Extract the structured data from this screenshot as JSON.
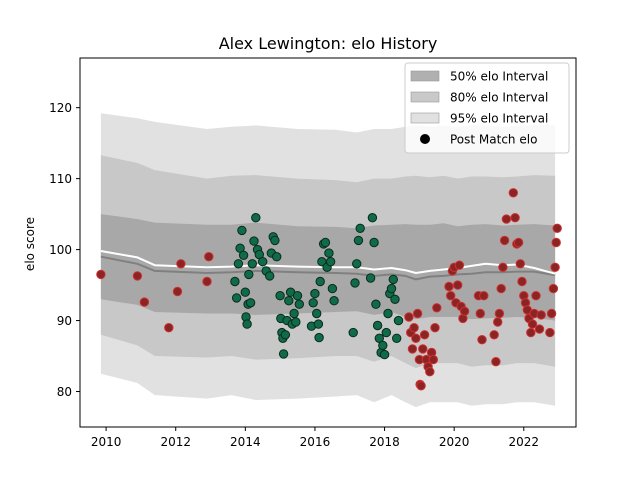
{
  "chart_data": {
    "type": "scatter",
    "title": "Alex Lewington: elo History",
    "xlabel": "",
    "ylabel": "elo score",
    "xlim": [
      2009.25,
      2023.5
    ],
    "ylim": [
      75,
      127
    ],
    "x_ticks": [
      2010,
      2012,
      2014,
      2016,
      2018,
      2020,
      2022
    ],
    "x_tick_labels": [
      "2010",
      "2012",
      "2014",
      "2016",
      "2018",
      "2020",
      "2022"
    ],
    "y_ticks": [
      80,
      90,
      100,
      110,
      120
    ],
    "y_tick_labels": [
      "80",
      "90",
      "100",
      "110",
      "120"
    ],
    "grid": false,
    "legend_position": "top-right",
    "legend": [
      {
        "label": "50% elo Interval",
        "kind": "band",
        "color": "#b0b0b0"
      },
      {
        "label": "80% elo Interval",
        "kind": "band",
        "color": "#c9c9c9"
      },
      {
        "label": "95% elo Interval",
        "kind": "band",
        "color": "#e1e1e1"
      },
      {
        "label": "Post Match elo",
        "kind": "marker",
        "color": "#000000"
      }
    ],
    "colors": {
      "band50": "#a8a8a8",
      "band80": "#c8c8c8",
      "band95": "#e1e1e1",
      "mean_line": "#808080",
      "median_line": "#ffffff",
      "point_green": "#0f6b48",
      "point_red": "#8b2424",
      "edge_green": "#0a2a1e",
      "edge_red": "#d03030"
    },
    "series": [
      {
        "kind": "band",
        "level": "95%",
        "x": [
          2009.85,
          2010.9,
          2011.4,
          2012.9,
          2013.6,
          2014.3,
          2015.5,
          2016.6,
          2017.2,
          2017.7,
          2018.2,
          2018.6,
          2018.9,
          2019.3,
          2019.7,
          2020.1,
          2020.5,
          2020.9,
          2021.4,
          2021.8,
          2022.3,
          2022.9
        ],
        "upper": [
          119.2,
          118.5,
          118.0,
          117.0,
          117.3,
          117.5,
          117.0,
          116.9,
          116.5,
          117.0,
          117.0,
          117.3,
          117.5,
          117.3,
          117.5,
          117.2,
          117.5,
          117.5,
          117.3,
          117.4,
          117.6,
          117.6
        ],
        "lower": [
          82.5,
          81.2,
          79.5,
          79.0,
          79.5,
          78.8,
          79.0,
          79.3,
          79.5,
          78.5,
          79.5,
          78.5,
          77.8,
          78.5,
          78.5,
          78.5,
          78.0,
          78.2,
          78.2,
          78.5,
          78.5,
          78.0
        ]
      },
      {
        "kind": "band",
        "level": "80%",
        "x": [
          2009.85,
          2010.9,
          2011.4,
          2012.9,
          2013.6,
          2014.3,
          2015.5,
          2016.6,
          2017.2,
          2017.7,
          2018.2,
          2018.6,
          2018.9,
          2019.3,
          2019.7,
          2020.1,
          2020.5,
          2020.9,
          2021.4,
          2021.8,
          2022.3,
          2022.9
        ],
        "upper": [
          113.3,
          112.2,
          111.2,
          110.0,
          110.4,
          110.5,
          110.0,
          109.8,
          109.5,
          110.0,
          110.0,
          110.3,
          110.4,
          110.2,
          110.4,
          110.0,
          110.3,
          110.3,
          110.2,
          110.3,
          110.5,
          110.4
        ],
        "lower": [
          88.0,
          86.5,
          85.0,
          84.8,
          85.0,
          84.5,
          84.7,
          85.0,
          85.0,
          84.2,
          85.0,
          84.0,
          83.3,
          84.0,
          84.0,
          84.0,
          83.5,
          83.7,
          83.7,
          84.0,
          84.0,
          83.5
        ]
      },
      {
        "kind": "band",
        "level": "50%",
        "x": [
          2009.85,
          2010.9,
          2011.4,
          2012.9,
          2013.6,
          2014.3,
          2015.5,
          2016.6,
          2017.2,
          2017.7,
          2018.2,
          2018.6,
          2018.9,
          2019.3,
          2019.7,
          2020.1,
          2020.5,
          2020.9,
          2021.4,
          2021.8,
          2022.3,
          2022.9
        ],
        "upper": [
          105.0,
          104.3,
          103.8,
          103.5,
          103.5,
          103.8,
          103.3,
          103.2,
          103.0,
          103.4,
          103.5,
          103.6,
          103.5,
          103.5,
          103.7,
          103.3,
          103.5,
          103.6,
          103.4,
          103.5,
          103.6,
          103.4
        ],
        "lower": [
          93.0,
          92.2,
          91.2,
          91.0,
          91.0,
          90.8,
          91.0,
          91.2,
          91.3,
          90.8,
          91.2,
          90.5,
          90.2,
          90.5,
          90.5,
          90.5,
          90.2,
          90.3,
          90.4,
          90.5,
          90.4,
          90.0
        ]
      },
      {
        "kind": "line",
        "role": "mean",
        "x": [
          2009.85,
          2010.9,
          2011.4,
          2012.9,
          2013.6,
          2014.3,
          2015.5,
          2016.6,
          2017.2,
          2017.7,
          2018.2,
          2018.6,
          2018.9,
          2019.3,
          2019.7,
          2020.1,
          2020.5,
          2020.9,
          2021.4,
          2021.8,
          2022.3,
          2022.9
        ],
        "y": [
          99.0,
          98.0,
          97.0,
          96.7,
          96.8,
          97.0,
          96.8,
          96.7,
          96.6,
          96.3,
          96.5,
          96.3,
          95.8,
          96.2,
          96.3,
          96.5,
          96.6,
          96.8,
          96.8,
          96.9,
          96.9,
          96.4
        ]
      },
      {
        "kind": "line",
        "role": "median",
        "x": [
          2009.85,
          2010.9,
          2011.4,
          2012.9,
          2013.6,
          2014.3,
          2015.5,
          2016.6,
          2017.2,
          2017.7,
          2018.2,
          2018.6,
          2018.9,
          2019.3,
          2019.7,
          2020.1,
          2020.5,
          2020.9,
          2021.4,
          2021.8,
          2022.3,
          2022.9
        ],
        "y": [
          99.8,
          98.9,
          97.8,
          97.5,
          97.6,
          97.8,
          97.6,
          97.5,
          97.5,
          97.2,
          97.4,
          97.1,
          96.7,
          97.0,
          97.2,
          97.4,
          97.7,
          98.0,
          97.8,
          97.9,
          97.4,
          96.6
        ]
      },
      {
        "kind": "scatter",
        "group": "red",
        "points": [
          [
            2009.85,
            96.5
          ],
          [
            2010.9,
            96.3
          ],
          [
            2011.1,
            92.6
          ],
          [
            2011.8,
            89.0
          ],
          [
            2012.05,
            94.1
          ],
          [
            2012.15,
            98.0
          ],
          [
            2012.9,
            95.5
          ],
          [
            2012.95,
            99.0
          ],
          [
            2018.7,
            90.5
          ],
          [
            2018.75,
            88.3
          ],
          [
            2018.8,
            86.0
          ],
          [
            2018.85,
            89.0
          ],
          [
            2018.9,
            87.5
          ],
          [
            2018.95,
            91.0
          ],
          [
            2019.0,
            84.5
          ],
          [
            2019.02,
            81.0
          ],
          [
            2019.05,
            80.8
          ],
          [
            2019.1,
            86.0
          ],
          [
            2019.15,
            88.0
          ],
          [
            2019.2,
            84.5
          ],
          [
            2019.25,
            83.5
          ],
          [
            2019.3,
            82.8
          ],
          [
            2019.35,
            85.5
          ],
          [
            2019.4,
            84.5
          ],
          [
            2019.45,
            89.0
          ],
          [
            2019.5,
            91.8
          ],
          [
            2019.85,
            94.8
          ],
          [
            2019.9,
            93.5
          ],
          [
            2019.95,
            97.0
          ],
          [
            2020.0,
            97.5
          ],
          [
            2020.05,
            92.5
          ],
          [
            2020.1,
            95.0
          ],
          [
            2020.15,
            97.8
          ],
          [
            2020.2,
            92.0
          ],
          [
            2020.25,
            90.3
          ],
          [
            2020.3,
            91.3
          ],
          [
            2020.7,
            93.5
          ],
          [
            2020.75,
            91.0
          ],
          [
            2020.8,
            87.3
          ],
          [
            2020.85,
            93.5
          ],
          [
            2021.15,
            88.0
          ],
          [
            2021.2,
            84.2
          ],
          [
            2021.25,
            89.8
          ],
          [
            2021.3,
            91.0
          ],
          [
            2021.35,
            94.5
          ],
          [
            2021.4,
            97.5
          ],
          [
            2021.45,
            101.3
          ],
          [
            2021.5,
            104.3
          ],
          [
            2021.7,
            108.0
          ],
          [
            2021.75,
            104.5
          ],
          [
            2021.8,
            100.8
          ],
          [
            2021.85,
            101.0
          ],
          [
            2021.9,
            98.0
          ],
          [
            2021.95,
            95.5
          ],
          [
            2022.0,
            93.5
          ],
          [
            2022.05,
            92.5
          ],
          [
            2022.1,
            91.5
          ],
          [
            2022.15,
            90.3
          ],
          [
            2022.2,
            88.3
          ],
          [
            2022.25,
            89.5
          ],
          [
            2022.3,
            91.0
          ],
          [
            2022.35,
            93.5
          ],
          [
            2022.45,
            88.8
          ],
          [
            2022.5,
            90.8
          ],
          [
            2022.75,
            88.3
          ],
          [
            2022.8,
            91.0
          ],
          [
            2022.85,
            94.5
          ],
          [
            2022.9,
            97.5
          ],
          [
            2022.93,
            101.0
          ],
          [
            2022.96,
            103.0
          ]
        ]
      },
      {
        "kind": "scatter",
        "group": "green",
        "points": [
          [
            2013.7,
            95.5
          ],
          [
            2013.75,
            93.2
          ],
          [
            2013.8,
            98.0
          ],
          [
            2013.85,
            100.2
          ],
          [
            2013.9,
            102.7
          ],
          [
            2013.95,
            99.2
          ],
          [
            2014.0,
            94.0
          ],
          [
            2014.02,
            90.5
          ],
          [
            2014.05,
            89.5
          ],
          [
            2014.08,
            92.3
          ],
          [
            2014.1,
            96.5
          ],
          [
            2014.15,
            92.5
          ],
          [
            2014.2,
            98.0
          ],
          [
            2014.25,
            101.2
          ],
          [
            2014.3,
            104.5
          ],
          [
            2014.35,
            100.0
          ],
          [
            2014.4,
            99.3
          ],
          [
            2014.5,
            98.3
          ],
          [
            2014.6,
            97.0
          ],
          [
            2014.7,
            96.3
          ],
          [
            2014.75,
            99.5
          ],
          [
            2014.8,
            101.8
          ],
          [
            2014.85,
            101.3
          ],
          [
            2014.9,
            99.0
          ],
          [
            2015.0,
            93.5
          ],
          [
            2015.02,
            90.3
          ],
          [
            2015.05,
            88.3
          ],
          [
            2015.08,
            87.5
          ],
          [
            2015.1,
            85.3
          ],
          [
            2015.15,
            88.0
          ],
          [
            2015.2,
            90.0
          ],
          [
            2015.25,
            92.8
          ],
          [
            2015.3,
            94.0
          ],
          [
            2015.35,
            89.5
          ],
          [
            2015.4,
            91.0
          ],
          [
            2015.45,
            89.8
          ],
          [
            2015.5,
            93.5
          ],
          [
            2015.55,
            92.3
          ],
          [
            2015.9,
            89.2
          ],
          [
            2015.95,
            92.5
          ],
          [
            2016.0,
            93.8
          ],
          [
            2016.05,
            91.0
          ],
          [
            2016.1,
            89.5
          ],
          [
            2016.12,
            87.6
          ],
          [
            2016.15,
            95.5
          ],
          [
            2016.2,
            98.3
          ],
          [
            2016.25,
            100.8
          ],
          [
            2016.3,
            101.0
          ],
          [
            2016.35,
            97.5
          ],
          [
            2016.4,
            99.5
          ],
          [
            2016.45,
            98.3
          ],
          [
            2016.5,
            94.5
          ],
          [
            2016.55,
            92.8
          ],
          [
            2017.1,
            88.3
          ],
          [
            2017.15,
            95.3
          ],
          [
            2017.2,
            98.0
          ],
          [
            2017.25,
            101.3
          ],
          [
            2017.3,
            103.0
          ],
          [
            2017.6,
            96.0
          ],
          [
            2017.65,
            104.5
          ],
          [
            2017.7,
            101.0
          ],
          [
            2017.75,
            92.3
          ],
          [
            2017.8,
            89.3
          ],
          [
            2017.85,
            87.5
          ],
          [
            2017.9,
            85.5
          ],
          [
            2017.95,
            86.5
          ],
          [
            2018.0,
            85.2
          ],
          [
            2018.05,
            88.3
          ],
          [
            2018.1,
            91.0
          ],
          [
            2018.15,
            93.8
          ],
          [
            2018.2,
            94.5
          ],
          [
            2018.25,
            95.8
          ],
          [
            2018.3,
            93.0
          ],
          [
            2018.35,
            87.5
          ],
          [
            2018.4,
            90.0
          ]
        ]
      }
    ]
  }
}
